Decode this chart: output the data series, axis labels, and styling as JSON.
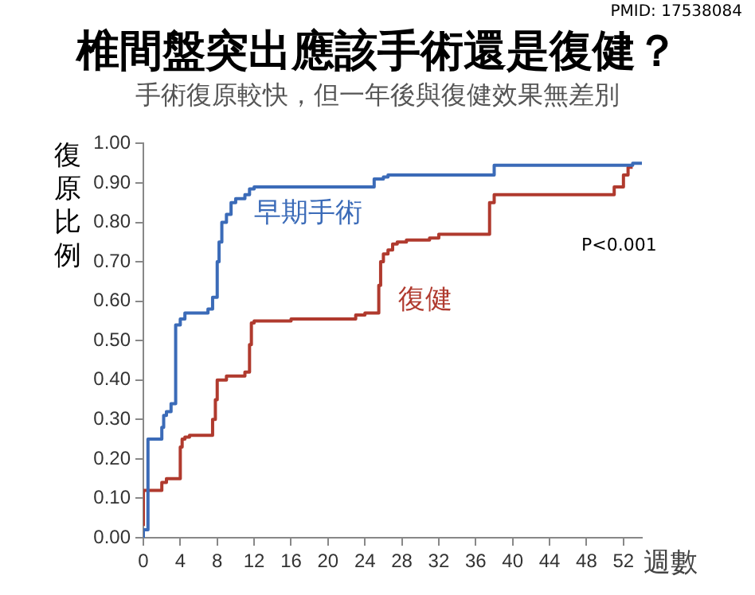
{
  "chart_data": {
    "type": "step",
    "title": "椎間盤突出應該手術還是復健？",
    "subtitle": "手術復原較快，但一年後與復健效果無差別",
    "xlabel": "週數",
    "ylabel": "復原比例",
    "annotations": [
      "PMID: 17538084",
      "P<0.001"
    ],
    "series": [
      {
        "name": "早期手術",
        "color": "#3b6bb8",
        "x": [
          0,
          0.5,
          2,
          2.2,
          2.5,
          3,
          3.5,
          4,
          4.5,
          7,
          7.5,
          8,
          8.2,
          8.5,
          9,
          9.5,
          10,
          11,
          11.5,
          12,
          25,
          26,
          26.5,
          30.5,
          38,
          38.2,
          53,
          54
        ],
        "values": [
          0,
          0.02,
          0.25,
          0.28,
          0.31,
          0.32,
          0.34,
          0.54,
          0.555,
          0.57,
          0.58,
          0.61,
          0.7,
          0.75,
          0.8,
          0.82,
          0.85,
          0.86,
          0.87,
          0.885,
          0.89,
          0.91,
          0.915,
          0.92,
          0.92,
          0.945,
          0.945,
          0.95
        ]
      },
      {
        "name": "復健",
        "color": "#b03a2e",
        "x": [
          0,
          2,
          2.5,
          4,
          4.2,
          4.5,
          5,
          7.5,
          7.8,
          8,
          9,
          11,
          11.5,
          11.7,
          12,
          16,
          23,
          24,
          25.5,
          25.7,
          26,
          26.5,
          27,
          27.5,
          28.5,
          31,
          32,
          37.5,
          38,
          38.5,
          51,
          52,
          52.5,
          53
        ],
        "values": [
          0.03,
          0.12,
          0.14,
          0.15,
          0.23,
          0.25,
          0.255,
          0.26,
          0.3,
          0.35,
          0.4,
          0.41,
          0.42,
          0.49,
          0.545,
          0.55,
          0.555,
          0.565,
          0.57,
          0.64,
          0.7,
          0.72,
          0.73,
          0.745,
          0.75,
          0.755,
          0.76,
          0.77,
          0.85,
          0.87,
          0.87,
          0.89,
          0.92,
          0.94
        ]
      }
    ],
    "xlim": [
      0,
      54
    ],
    "xticks": [
      0,
      4,
      8,
      12,
      16,
      20,
      24,
      28,
      32,
      36,
      40,
      44,
      48,
      52
    ],
    "ylim": [
      0,
      1
    ],
    "yticks": [
      {
        "value": 0,
        "label": "0.00"
      },
      {
        "value": 0.1,
        "label": "0.10"
      },
      {
        "value": 0.2,
        "label": "0.20"
      },
      {
        "value": 0.3,
        "label": "0.30"
      },
      {
        "value": 0.4,
        "label": "0.40"
      },
      {
        "value": 0.5,
        "label": "0.50"
      },
      {
        "value": 0.6,
        "label": "0.60"
      },
      {
        "value": 0.7,
        "label": "0.70"
      },
      {
        "value": 0.8,
        "label": "0.80"
      },
      {
        "value": 0.9,
        "label": "0.90"
      },
      {
        "value": 1,
        "label": "1.00"
      }
    ],
    "grid": false,
    "legend": false,
    "marker": "none",
    "line_style": "solid"
  }
}
